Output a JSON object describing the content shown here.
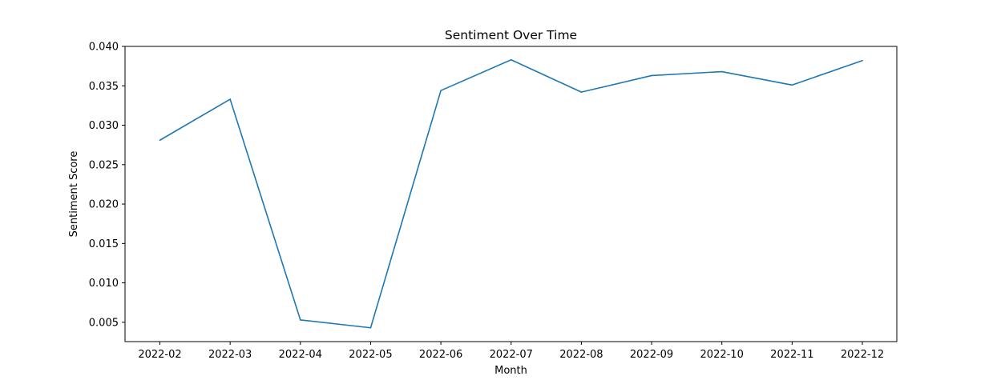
{
  "chart_data": {
    "type": "line",
    "title": "Sentiment Over Time",
    "xlabel": "Month",
    "ylabel": "Sentiment Score",
    "categories": [
      "2022-02",
      "2022-03",
      "2022-04",
      "2022-05",
      "2022-06",
      "2022-07",
      "2022-08",
      "2022-09",
      "2022-10",
      "2022-11",
      "2022-12"
    ],
    "series": [
      {
        "values": [
          0.0281,
          0.0333,
          0.0053,
          0.0043,
          0.0344,
          0.0383,
          0.0342,
          0.0363,
          0.0368,
          0.0351,
          0.0382
        ],
        "color": "#1f77b4"
      }
    ],
    "yticks": [
      "0.005",
      "0.010",
      "0.015",
      "0.020",
      "0.025",
      "0.030",
      "0.035",
      "0.040"
    ],
    "ylim": [
      0.00255,
      0.04
    ],
    "grid": false
  }
}
